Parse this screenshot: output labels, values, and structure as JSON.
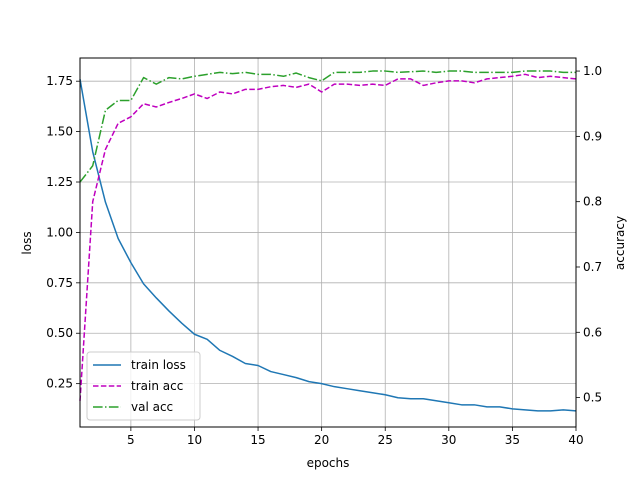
{
  "chart_data": {
    "type": "line",
    "xlabel": "epochs",
    "ylabel_left": "loss",
    "ylabel_right": "accuracy",
    "xlim": [
      1,
      40
    ],
    "ylim_left": [
      0.035,
      1.865
    ],
    "ylim_right": [
      0.455,
      1.02
    ],
    "grid": true,
    "legend_position": "lower-left",
    "x_ticks": [
      "5",
      "10",
      "15",
      "20",
      "25",
      "30",
      "35",
      "40"
    ],
    "y_left_ticks": [
      "0.25",
      "0.50",
      "0.75",
      "1.00",
      "1.25",
      "1.50",
      "1.75"
    ],
    "y_right_ticks": [
      "0.5",
      "0.6",
      "0.7",
      "0.8",
      "0.9",
      "1.0"
    ],
    "x": [
      1,
      2,
      3,
      4,
      5,
      6,
      7,
      8,
      9,
      10,
      11,
      12,
      13,
      14,
      15,
      16,
      17,
      18,
      19,
      20,
      21,
      22,
      23,
      24,
      25,
      26,
      27,
      28,
      29,
      30,
      31,
      32,
      33,
      34,
      35,
      36,
      37,
      38,
      39,
      40
    ],
    "series": [
      {
        "name": "train loss",
        "axis": "left",
        "color": "#1f77b4",
        "dash": "solid",
        "values": [
          1.76,
          1.4,
          1.15,
          0.97,
          0.85,
          0.745,
          0.675,
          0.61,
          0.55,
          0.495,
          0.47,
          0.415,
          0.385,
          0.35,
          0.34,
          0.31,
          0.295,
          0.28,
          0.26,
          0.25,
          0.235,
          0.225,
          0.215,
          0.205,
          0.195,
          0.18,
          0.175,
          0.175,
          0.165,
          0.155,
          0.145,
          0.145,
          0.135,
          0.135,
          0.125,
          0.12,
          0.115,
          0.115,
          0.12,
          0.115
        ]
      },
      {
        "name": "train acc",
        "axis": "right",
        "color": "#bf00bf",
        "dash": "dashed",
        "values": [
          0.495,
          0.8,
          0.88,
          0.92,
          0.93,
          0.95,
          0.945,
          0.952,
          0.958,
          0.965,
          0.958,
          0.968,
          0.965,
          0.972,
          0.972,
          0.976,
          0.978,
          0.975,
          0.98,
          0.968,
          0.98,
          0.98,
          0.978,
          0.98,
          0.978,
          0.988,
          0.988,
          0.978,
          0.982,
          0.985,
          0.985,
          0.982,
          0.988,
          0.99,
          0.992,
          0.995,
          0.99,
          0.992,
          0.99,
          0.988
        ]
      },
      {
        "name": "val acc",
        "axis": "right",
        "color": "#2ca02c",
        "dash": "dashdot",
        "values": [
          0.83,
          0.855,
          0.94,
          0.955,
          0.955,
          0.99,
          0.98,
          0.99,
          0.988,
          0.992,
          0.995,
          0.998,
          0.996,
          0.998,
          0.995,
          0.995,
          0.992,
          0.997,
          0.99,
          0.985,
          0.998,
          0.998,
          0.998,
          1.0,
          1.0,
          0.998,
          0.999,
          1.0,
          0.998,
          1.0,
          1.0,
          0.998,
          0.998,
          0.998,
          0.998,
          1.0,
          1.0,
          1.0,
          0.998,
          0.998
        ]
      }
    ]
  }
}
